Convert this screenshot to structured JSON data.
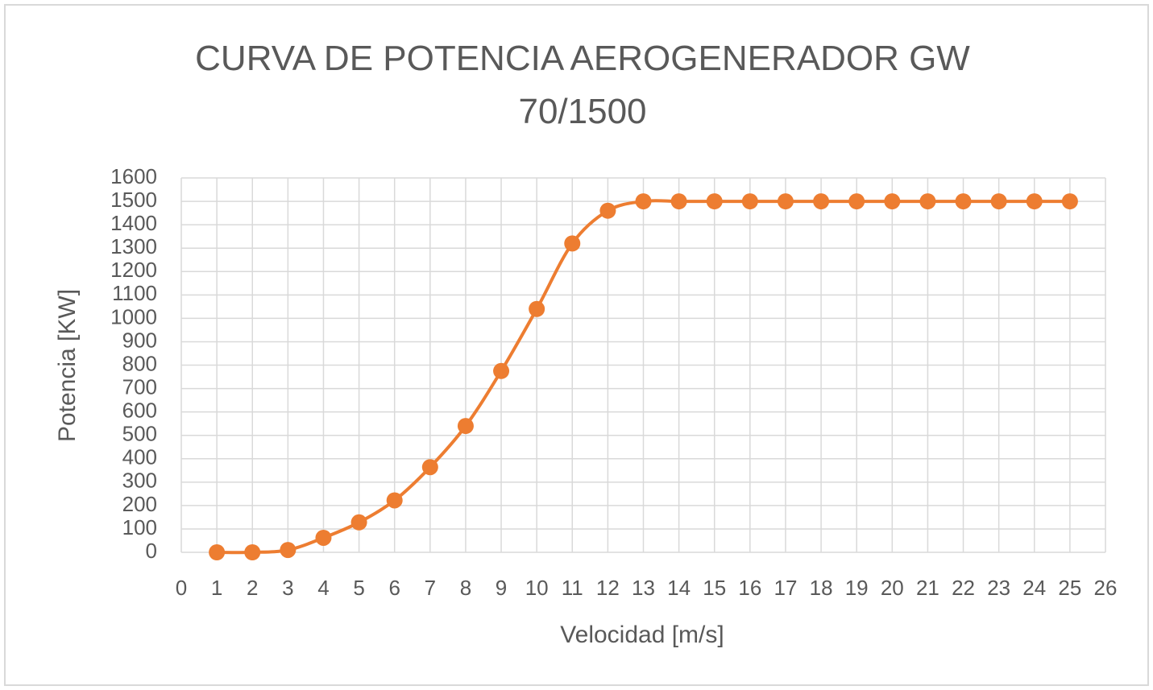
{
  "chart_data": {
    "type": "line",
    "title": "CURVA DE POTENCIA AEROGENERADOR GW 70/1500",
    "x_label": "Velocidad [m/s]",
    "y_label": "Potencia [KW]",
    "x": [
      1,
      2,
      3,
      4,
      5,
      6,
      7,
      8,
      9,
      10,
      11,
      12,
      13,
      14,
      15,
      16,
      17,
      18,
      19,
      20,
      21,
      22,
      23,
      24,
      25
    ],
    "series": [
      {
        "name": "Potencia",
        "color": "#ed7d31",
        "values": [
          0,
          0,
          10,
          62,
          128,
          222,
          364,
          540,
          775,
          1040,
          1320,
          1460,
          1500,
          1500,
          1500,
          1500,
          1500,
          1500,
          1500,
          1500,
          1500,
          1500,
          1500,
          1500,
          1500
        ]
      }
    ],
    "xlim": [
      0,
      26
    ],
    "xticks": [
      0,
      1,
      2,
      3,
      4,
      5,
      6,
      7,
      8,
      9,
      10,
      11,
      12,
      13,
      14,
      15,
      16,
      17,
      18,
      19,
      20,
      21,
      22,
      23,
      24,
      25,
      26
    ],
    "ylim": [
      0,
      1600
    ],
    "yticks": [
      0,
      100,
      200,
      300,
      400,
      500,
      600,
      700,
      800,
      900,
      1000,
      1100,
      1200,
      1300,
      1400,
      1500,
      1600
    ],
    "grid": true
  }
}
